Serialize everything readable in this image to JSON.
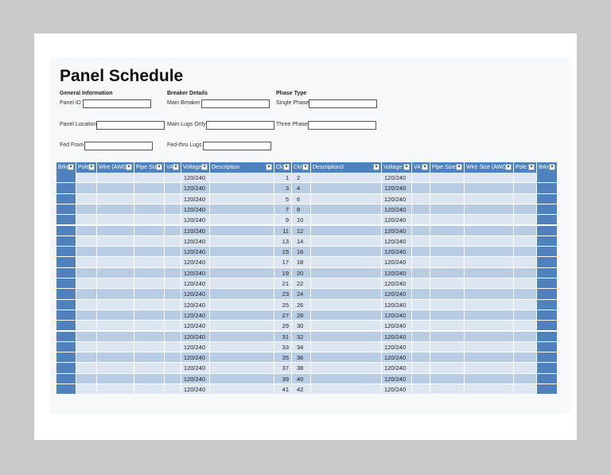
{
  "header": {
    "title": "Panel Schedule"
  },
  "form": {
    "sections": [
      {
        "title": "General Information",
        "fields": [
          "Panel ID",
          "Panel Location",
          "Fed From"
        ]
      },
      {
        "title": "Breaker Details",
        "fields": [
          "Main Breaker",
          "Main Lugs Only",
          "Fed-thru Lugs"
        ]
      },
      {
        "title": "Phase Type",
        "fields": [
          "Single Phase",
          "Three Phase"
        ]
      }
    ]
  },
  "table": {
    "columns": [
      "Brkr",
      "Pole",
      "Wire (AWG)",
      "Pipe Size",
      "VA",
      "Voltage",
      "Description",
      "Ckt",
      "Ckt",
      "Description3",
      "Voltage",
      "VA",
      "Pipe Size",
      "Wire Size (AWG)",
      "Pole",
      "Brkr"
    ],
    "rows": [
      [
        "120/240",
        1,
        2,
        "120/240"
      ],
      [
        "120/240",
        3,
        4,
        "120/240"
      ],
      [
        "120/240",
        5,
        6,
        "120/240"
      ],
      [
        "120/240",
        7,
        8,
        "120/240"
      ],
      [
        "120/240",
        9,
        10,
        "120/240"
      ],
      [
        "120/240",
        11,
        12,
        "120/240"
      ],
      [
        "120/240",
        13,
        14,
        "120/240"
      ],
      [
        "120/240",
        15,
        16,
        "120/240"
      ],
      [
        "120/240",
        17,
        18,
        "120/240"
      ],
      [
        "120/240",
        19,
        20,
        "120/240"
      ],
      [
        "120/240",
        21,
        22,
        "120/240"
      ],
      [
        "120/240",
        23,
        24,
        "120/240"
      ],
      [
        "120/240",
        25,
        26,
        "120/240"
      ],
      [
        "120/240",
        27,
        28,
        "120/240"
      ],
      [
        "120/240",
        29,
        30,
        "120/240"
      ],
      [
        "120/240",
        31,
        32,
        "120/240"
      ],
      [
        "120/240",
        33,
        34,
        "120/240"
      ],
      [
        "120/240",
        35,
        36,
        "120/240"
      ],
      [
        "120/240",
        37,
        38,
        "120/240"
      ],
      [
        "120/240",
        39,
        40,
        "120/240"
      ],
      [
        "120/240",
        41,
        42,
        "120/240"
      ]
    ]
  }
}
